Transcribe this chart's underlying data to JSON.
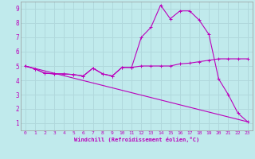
{
  "xlabel": "Windchill (Refroidissement éolien,°C)",
  "bg_color": "#c0eaec",
  "grid_color": "#b0d8dc",
  "line_color": "#bb00bb",
  "xlim": [
    -0.5,
    23.5
  ],
  "ylim": [
    0.5,
    9.5
  ],
  "xticks": [
    0,
    1,
    2,
    3,
    4,
    5,
    6,
    7,
    8,
    9,
    10,
    11,
    12,
    13,
    14,
    15,
    16,
    17,
    18,
    19,
    20,
    21,
    22,
    23
  ],
  "yticks": [
    1,
    2,
    3,
    4,
    5,
    6,
    7,
    8,
    9
  ],
  "series1_x": [
    0,
    1,
    2,
    3,
    4,
    5,
    6,
    7,
    8,
    9,
    10,
    11,
    12,
    13,
    14,
    15,
    16,
    17,
    18,
    19,
    20,
    21,
    22,
    23
  ],
  "series1_y": [
    5.0,
    4.8,
    4.5,
    4.45,
    4.45,
    4.4,
    4.3,
    4.85,
    4.45,
    4.3,
    4.9,
    4.9,
    7.0,
    7.7,
    9.25,
    8.3,
    8.85,
    8.85,
    8.2,
    7.2,
    4.1,
    3.0,
    1.7,
    1.1
  ],
  "series2_x": [
    0,
    1,
    2,
    3,
    4,
    5,
    6,
    7,
    8,
    9,
    10,
    11,
    12,
    13,
    14,
    15,
    16,
    17,
    18,
    19,
    20,
    21,
    22,
    23
  ],
  "series2_y": [
    5.0,
    4.8,
    4.5,
    4.45,
    4.45,
    4.4,
    4.3,
    4.85,
    4.45,
    4.3,
    4.9,
    4.9,
    5.0,
    5.0,
    5.0,
    5.0,
    5.15,
    5.2,
    5.3,
    5.4,
    5.5,
    5.5,
    5.5,
    5.5
  ],
  "series3_x": [
    0,
    23
  ],
  "series3_y": [
    5.0,
    1.1
  ]
}
